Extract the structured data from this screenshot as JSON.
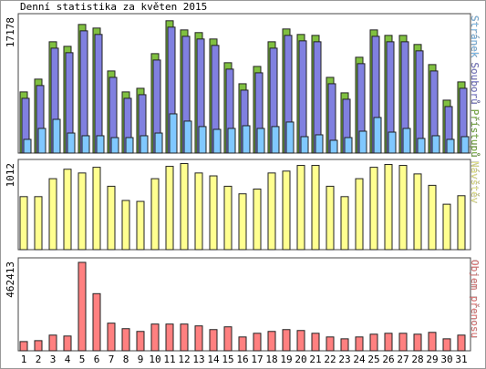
{
  "chart_data": [
    {
      "type": "bar",
      "title": "Denní statistika za květen 2015",
      "ylim": [
        0,
        18100
      ],
      "yticks": [
        17178
      ],
      "series": [
        {
          "name": "Přístupů",
          "color": "#80c040",
          "values": [
            7940,
            9600,
            14450,
            13860,
            16700,
            16230,
            10660,
            7940,
            8410,
            12910,
            17178,
            15990,
            15640,
            14810,
            11730,
            9000,
            11250,
            14450,
            16110,
            15400,
            15280,
            9830,
            7820,
            12440,
            15990,
            15280,
            15280,
            14100,
            11490,
            6870,
            9240
          ]
        },
        {
          "name": "Souborů",
          "color": "#8080e0",
          "values": [
            7110,
            8770,
            13620,
            13030,
            15870,
            15400,
            9830,
            7110,
            7580,
            12080,
            16350,
            15160,
            14810,
            13980,
            10900,
            8170,
            10420,
            13620,
            15280,
            14570,
            14450,
            9000,
            6990,
            11610,
            15160,
            14450,
            14450,
            13270,
            10660,
            6040,
            8410
          ]
        },
        {
          "name": "Stránek",
          "color": "#80c8ff",
          "values": [
            1780,
            3200,
            4380,
            2600,
            2250,
            2250,
            2010,
            2010,
            2250,
            2600,
            5090,
            4150,
            3440,
            3080,
            3200,
            3550,
            3200,
            3440,
            4030,
            2130,
            2370,
            1660,
            2010,
            2840,
            4620,
            2720,
            3200,
            1900,
            2250,
            1780,
            2130
          ]
        }
      ]
    },
    {
      "type": "bar",
      "ylim": [
        0,
        1060
      ],
      "yticks": [
        1012
      ],
      "series": [
        {
          "name": "Návštěv",
          "color": "#ffff90",
          "values": [
            623,
            623,
            834,
            945,
            901,
            968,
            745,
            578,
            567,
            834,
            979,
            1012,
            901,
            867,
            745,
            656,
            712,
            901,
            923,
            990,
            990,
            745,
            623,
            834,
            968,
            1001,
            990,
            890,
            756,
            534,
            634
          ]
        }
      ]
    },
    {
      "type": "bar",
      "ylim": [
        0,
        486000
      ],
      "yticks": [
        462413
      ],
      "categories": [
        "1",
        "2",
        "3",
        "4",
        "5",
        "6",
        "7",
        "8",
        "9",
        "10",
        "11",
        "12",
        "13",
        "14",
        "15",
        "16",
        "17",
        "18",
        "19",
        "20",
        "21",
        "22",
        "23",
        "24",
        "25",
        "26",
        "27",
        "28",
        "29",
        "30",
        "31"
      ],
      "category_colors": [
        "#000",
        "#4a9a00",
        "#4a9a00",
        "#000",
        "#000",
        "#000",
        "#000",
        "#000",
        "#4a9a00",
        "#4a9a00",
        "#000",
        "#000",
        "#000",
        "#000",
        "#000",
        "#4a9a00",
        "#4a9a00",
        "#000",
        "#000",
        "#000",
        "#000",
        "#000",
        "#4a9a00",
        "#4a9a00",
        "#000",
        "#000",
        "#000",
        "#000",
        "#000",
        "#4a9a00",
        "#4a9a00"
      ],
      "series": [
        {
          "name": "Objem přenosu",
          "color": "#ff8080",
          "values": [
            48170,
            53000,
            81900,
            77100,
            462413,
            298700,
            144500,
            115600,
            101200,
            139700,
            139700,
            139700,
            130100,
            110800,
            125200,
            72300,
            91500,
            101200,
            110800,
            106000,
            91500,
            72300,
            62600,
            72300,
            86700,
            91500,
            91500,
            86700,
            96300,
            62600,
            81900
          ]
        }
      ]
    }
  ]
}
